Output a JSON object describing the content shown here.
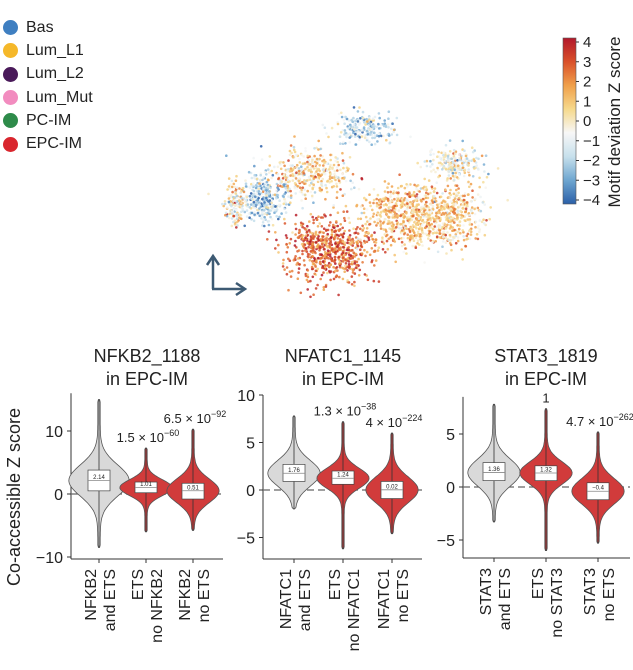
{
  "legend": {
    "items": [
      {
        "label": "Bas",
        "color": "#3f7fc1"
      },
      {
        "label": "Lum_L1",
        "color": "#f5b82a"
      },
      {
        "label": "Lum_L2",
        "color": "#4a1a5a"
      },
      {
        "label": "Lum_Mut",
        "color": "#f28cbf"
      },
      {
        "label": "PC-IM",
        "color": "#2e8b4a"
      },
      {
        "label": "EPC-IM",
        "color": "#d9262e"
      }
    ]
  },
  "colorbar": {
    "label": "Motif deviation Z score",
    "ticks": [
      "4",
      "3",
      "2",
      "1",
      "0",
      "−1",
      "−2",
      "−3",
      "−4"
    ],
    "range": [
      -4,
      4
    ],
    "colors": [
      "#2b5fa8",
      "#6ea6d0",
      "#c7e0ec",
      "#f7f7f7",
      "#f6d98c",
      "#f0a04a",
      "#d9502a",
      "#b2182b"
    ]
  },
  "umap_axes_icon": "arrow-axes-icon",
  "chart_data": [
    {
      "type": "violin",
      "title": [
        "NFKB2_1188",
        "in EPC-IM"
      ],
      "ylabel": "Co-accessible Z score",
      "yticks": [
        10,
        0,
        -10
      ],
      "ylim": [
        -10,
        16
      ],
      "reference_line": 0,
      "categories": [
        [
          "NFKB2",
          "and ETS"
        ],
        [
          "ETS",
          "no NFKB2"
        ],
        [
          "NFKB2",
          "no ETS"
        ]
      ],
      "medians": [
        "2.14",
        "1.01",
        "0.51"
      ],
      "median_values": [
        2.14,
        1.01,
        0.51
      ],
      "box": [
        [
          0.5,
          3.8
        ],
        [
          0.2,
          1.9
        ],
        [
          -0.8,
          1.7
        ]
      ],
      "range": [
        [
          -8.5,
          15
        ],
        [
          -6,
          7.3
        ],
        [
          -5.8,
          10.3
        ]
      ],
      "fill": [
        "#d9d9d9",
        "#d13b3b",
        "#d13b3b"
      ],
      "pvalues": [
        null,
        {
          "mant": "1.5 × 10",
          "exp": "−60"
        },
        {
          "mant": "6.5 × 10",
          "exp": "−92"
        }
      ]
    },
    {
      "type": "violin",
      "title": [
        "NFATC1_1145",
        "in EPC-IM"
      ],
      "ylabel": "",
      "yticks": [
        10,
        5,
        0,
        -5
      ],
      "ylim": [
        -7,
        10
      ],
      "reference_line": 0,
      "categories": [
        [
          "NFATC1",
          "and ETS"
        ],
        [
          "ETS",
          "no NFATC1"
        ],
        [
          "NFATC1",
          "no ETS"
        ]
      ],
      "medians": [
        "1.76",
        "1.24",
        "0.02"
      ],
      "median_values": [
        1.76,
        1.24,
        0.02
      ],
      "box": [
        [
          0.9,
          2.7
        ],
        [
          0.6,
          2.0
        ],
        [
          -0.9,
          0.9
        ]
      ],
      "range": [
        [
          -2,
          7.8
        ],
        [
          -6.2,
          7.2
        ],
        [
          -4.6,
          6
        ]
      ],
      "fill": [
        "#d9d9d9",
        "#d13b3b",
        "#d13b3b"
      ],
      "pvalues": [
        null,
        {
          "mant": "1.3 × 10",
          "exp": "−38"
        },
        {
          "mant": "4 × 10",
          "exp": "−224"
        }
      ]
    },
    {
      "type": "violin",
      "title": [
        "STAT3_1819",
        "in EPC-IM"
      ],
      "ylabel": "",
      "yticks": [
        5,
        0,
        -5
      ],
      "ylim": [
        -6.6,
        8.5
      ],
      "reference_line": 0,
      "categories": [
        [
          "STAT3",
          "and ETS"
        ],
        [
          "ETS",
          "no STAT3"
        ],
        [
          "STAT3",
          "no ETS"
        ]
      ],
      "medians": [
        "1.36",
        "1.32",
        "−0.4"
      ],
      "median_values": [
        1.36,
        1.32,
        -0.4
      ],
      "box": [
        [
          0.6,
          2.3
        ],
        [
          0.6,
          2.0
        ],
        [
          -1.2,
          0.4
        ]
      ],
      "range": [
        [
          -3.3,
          7.8
        ],
        [
          -6,
          7.4
        ],
        [
          -5.3,
          5.2
        ]
      ],
      "fill": [
        "#d9d9d9",
        "#d13b3b",
        "#d13b3b"
      ],
      "pvalues": [
        null,
        {
          "mant": "1",
          "exp": ""
        },
        {
          "mant": "4.7 × 10",
          "exp": "−262"
        }
      ]
    }
  ]
}
